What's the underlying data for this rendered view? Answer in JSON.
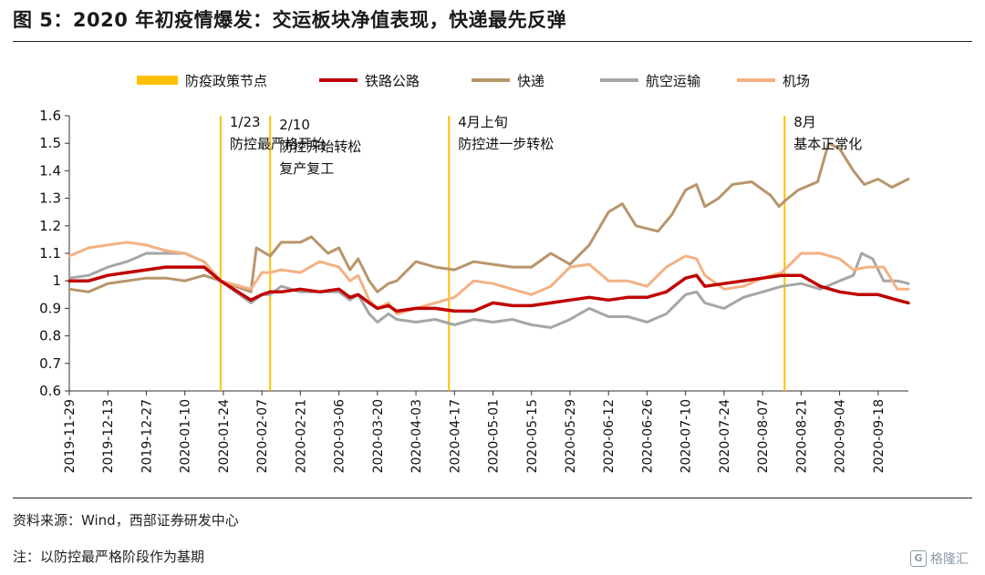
{
  "header": {
    "title": "图 5：2020 年初疫情爆发：交运板块净值表现，快递最先反弹"
  },
  "footer": {
    "source": "资料来源：Wind，西部证券研发中心",
    "note": "注：以防控最严格阶段作为基期",
    "watermark": "格隆汇",
    "watermark_badge": "G"
  },
  "chart_data": {
    "type": "line",
    "title": "",
    "xlabel": "",
    "ylabel": "",
    "ylim": [
      0.6,
      1.6
    ],
    "yticks": [
      "1.6",
      "1.5",
      "1.4",
      "1.3",
      "1.2",
      "1.1",
      "1",
      "0.9",
      "0.8",
      "0.7",
      "0.6"
    ],
    "x_tick_labels": [
      "2019-11-29",
      "2019-12-13",
      "2019-12-27",
      "2020-01-10",
      "2020-01-24",
      "2020-02-07",
      "2020-02-21",
      "2020-03-06",
      "2020-03-20",
      "2020-04-03",
      "2020-04-17",
      "2020-05-01",
      "2020-05-15",
      "2020-05-29",
      "2020-06-12",
      "2020-06-26",
      "2020-07-10",
      "2020-07-24",
      "2020-08-07",
      "2020-08-21",
      "2020-09-04",
      "2020-09-18"
    ],
    "x_range": [
      "2019-11-29",
      "2020-09-29"
    ],
    "grid": false,
    "legend_position": "top",
    "legend": [
      {
        "name": "防疫政策节点",
        "color": "#ffc000",
        "kind": "bar"
      },
      {
        "name": "铁路公路",
        "color": "#c00000",
        "kind": "line"
      },
      {
        "name": "快递",
        "color": "#b8956a",
        "kind": "line"
      },
      {
        "name": "航空运输",
        "color": "#a6a6a6",
        "kind": "line"
      },
      {
        "name": "机场",
        "color": "#f4b183",
        "kind": "line"
      }
    ],
    "policy_lines": [
      {
        "date": "2020-01-23",
        "label_lines": [
          "1/23",
          "防控最严格开始"
        ],
        "label_y": 1.56
      },
      {
        "date": "2020-02-10",
        "label_lines": [
          "2/10",
          "防控开始转松",
          "复产复工"
        ],
        "label_y": 1.55
      },
      {
        "date": "2020-04-15",
        "label_lines": [
          "4月上旬",
          "防控进一步转松"
        ],
        "label_y": 1.56
      },
      {
        "date": "2020-08-15",
        "label_lines": [
          "8月",
          "基本正常化"
        ],
        "label_y": 1.56
      }
    ],
    "series": [
      {
        "name": "快递",
        "color": "#b8956a",
        "width": 3,
        "points": [
          [
            "2019-11-29",
            0.97
          ],
          [
            "2019-12-06",
            0.96
          ],
          [
            "2019-12-13",
            0.99
          ],
          [
            "2019-12-20",
            1.0
          ],
          [
            "2019-12-27",
            1.01
          ],
          [
            "2020-01-03",
            1.01
          ],
          [
            "2020-01-10",
            1.0
          ],
          [
            "2020-01-17",
            1.02
          ],
          [
            "2020-01-23",
            1.0
          ],
          [
            "2020-02-03",
            0.96
          ],
          [
            "2020-02-05",
            1.12
          ],
          [
            "2020-02-10",
            1.09
          ],
          [
            "2020-02-14",
            1.14
          ],
          [
            "2020-02-21",
            1.14
          ],
          [
            "2020-02-25",
            1.16
          ],
          [
            "2020-03-02",
            1.1
          ],
          [
            "2020-03-06",
            1.12
          ],
          [
            "2020-03-10",
            1.04
          ],
          [
            "2020-03-13",
            1.08
          ],
          [
            "2020-03-17",
            1.0
          ],
          [
            "2020-03-20",
            0.96
          ],
          [
            "2020-03-24",
            0.99
          ],
          [
            "2020-03-27",
            1.0
          ],
          [
            "2020-04-03",
            1.07
          ],
          [
            "2020-04-10",
            1.05
          ],
          [
            "2020-04-17",
            1.04
          ],
          [
            "2020-04-24",
            1.07
          ],
          [
            "2020-05-01",
            1.06
          ],
          [
            "2020-05-08",
            1.05
          ],
          [
            "2020-05-15",
            1.05
          ],
          [
            "2020-05-22",
            1.1
          ],
          [
            "2020-05-29",
            1.06
          ],
          [
            "2020-06-05",
            1.13
          ],
          [
            "2020-06-12",
            1.25
          ],
          [
            "2020-06-17",
            1.28
          ],
          [
            "2020-06-22",
            1.2
          ],
          [
            "2020-06-30",
            1.18
          ],
          [
            "2020-07-05",
            1.24
          ],
          [
            "2020-07-10",
            1.33
          ],
          [
            "2020-07-14",
            1.35
          ],
          [
            "2020-07-17",
            1.27
          ],
          [
            "2020-07-22",
            1.3
          ],
          [
            "2020-07-27",
            1.35
          ],
          [
            "2020-08-03",
            1.36
          ],
          [
            "2020-08-10",
            1.31
          ],
          [
            "2020-08-13",
            1.27
          ],
          [
            "2020-08-15",
            1.29
          ],
          [
            "2020-08-20",
            1.33
          ],
          [
            "2020-08-27",
            1.36
          ],
          [
            "2020-08-31",
            1.5
          ],
          [
            "2020-09-04",
            1.48
          ],
          [
            "2020-09-09",
            1.4
          ],
          [
            "2020-09-13",
            1.35
          ],
          [
            "2020-09-18",
            1.37
          ],
          [
            "2020-09-23",
            1.34
          ],
          [
            "2020-09-29",
            1.37
          ]
        ]
      },
      {
        "name": "航空运输",
        "color": "#a6a6a6",
        "width": 3,
        "points": [
          [
            "2019-11-29",
            1.01
          ],
          [
            "2019-12-06",
            1.02
          ],
          [
            "2019-12-13",
            1.05
          ],
          [
            "2019-12-20",
            1.07
          ],
          [
            "2019-12-27",
            1.1
          ],
          [
            "2020-01-03",
            1.1
          ],
          [
            "2020-01-10",
            1.1
          ],
          [
            "2020-01-17",
            1.07
          ],
          [
            "2020-01-23",
            1.0
          ],
          [
            "2020-02-03",
            0.92
          ],
          [
            "2020-02-07",
            0.95
          ],
          [
            "2020-02-10",
            0.95
          ],
          [
            "2020-02-14",
            0.98
          ],
          [
            "2020-02-21",
            0.96
          ],
          [
            "2020-02-28",
            0.96
          ],
          [
            "2020-03-06",
            0.96
          ],
          [
            "2020-03-10",
            0.93
          ],
          [
            "2020-03-13",
            0.95
          ],
          [
            "2020-03-17",
            0.88
          ],
          [
            "2020-03-20",
            0.85
          ],
          [
            "2020-03-24",
            0.88
          ],
          [
            "2020-03-27",
            0.86
          ],
          [
            "2020-04-03",
            0.85
          ],
          [
            "2020-04-10",
            0.86
          ],
          [
            "2020-04-17",
            0.84
          ],
          [
            "2020-04-24",
            0.86
          ],
          [
            "2020-05-01",
            0.85
          ],
          [
            "2020-05-08",
            0.86
          ],
          [
            "2020-05-15",
            0.84
          ],
          [
            "2020-05-22",
            0.83
          ],
          [
            "2020-05-29",
            0.86
          ],
          [
            "2020-06-05",
            0.9
          ],
          [
            "2020-06-12",
            0.87
          ],
          [
            "2020-06-19",
            0.87
          ],
          [
            "2020-06-26",
            0.85
          ],
          [
            "2020-07-03",
            0.88
          ],
          [
            "2020-07-10",
            0.95
          ],
          [
            "2020-07-14",
            0.96
          ],
          [
            "2020-07-17",
            0.92
          ],
          [
            "2020-07-24",
            0.9
          ],
          [
            "2020-07-31",
            0.94
          ],
          [
            "2020-08-07",
            0.96
          ],
          [
            "2020-08-14",
            0.98
          ],
          [
            "2020-08-21",
            0.99
          ],
          [
            "2020-08-28",
            0.97
          ],
          [
            "2020-09-04",
            1.0
          ],
          [
            "2020-09-09",
            1.02
          ],
          [
            "2020-09-12",
            1.1
          ],
          [
            "2020-09-16",
            1.08
          ],
          [
            "2020-09-20",
            1.0
          ],
          [
            "2020-09-25",
            1.0
          ],
          [
            "2020-09-29",
            0.99
          ]
        ]
      },
      {
        "name": "机场",
        "color": "#f4b183",
        "width": 3,
        "points": [
          [
            "2019-11-29",
            1.09
          ],
          [
            "2019-12-06",
            1.12
          ],
          [
            "2019-12-13",
            1.13
          ],
          [
            "2019-12-20",
            1.14
          ],
          [
            "2019-12-27",
            1.13
          ],
          [
            "2020-01-03",
            1.11
          ],
          [
            "2020-01-10",
            1.1
          ],
          [
            "2020-01-17",
            1.07
          ],
          [
            "2020-01-23",
            1.0
          ],
          [
            "2020-02-03",
            0.97
          ],
          [
            "2020-02-07",
            1.03
          ],
          [
            "2020-02-10",
            1.03
          ],
          [
            "2020-02-14",
            1.04
          ],
          [
            "2020-02-21",
            1.03
          ],
          [
            "2020-02-28",
            1.07
          ],
          [
            "2020-03-06",
            1.05
          ],
          [
            "2020-03-10",
            1.0
          ],
          [
            "2020-03-13",
            1.02
          ],
          [
            "2020-03-17",
            0.93
          ],
          [
            "2020-03-20",
            0.9
          ],
          [
            "2020-03-24",
            0.92
          ],
          [
            "2020-03-27",
            0.88
          ],
          [
            "2020-04-03",
            0.9
          ],
          [
            "2020-04-10",
            0.92
          ],
          [
            "2020-04-17",
            0.94
          ],
          [
            "2020-04-24",
            1.0
          ],
          [
            "2020-05-01",
            0.99
          ],
          [
            "2020-05-08",
            0.97
          ],
          [
            "2020-05-15",
            0.95
          ],
          [
            "2020-05-22",
            0.98
          ],
          [
            "2020-05-29",
            1.05
          ],
          [
            "2020-06-05",
            1.06
          ],
          [
            "2020-06-12",
            1.0
          ],
          [
            "2020-06-19",
            1.0
          ],
          [
            "2020-06-26",
            0.98
          ],
          [
            "2020-07-03",
            1.05
          ],
          [
            "2020-07-10",
            1.09
          ],
          [
            "2020-07-14",
            1.08
          ],
          [
            "2020-07-17",
            1.02
          ],
          [
            "2020-07-24",
            0.97
          ],
          [
            "2020-07-31",
            0.98
          ],
          [
            "2020-08-07",
            1.01
          ],
          [
            "2020-08-14",
            1.03
          ],
          [
            "2020-08-21",
            1.1
          ],
          [
            "2020-08-28",
            1.1
          ],
          [
            "2020-09-04",
            1.08
          ],
          [
            "2020-09-09",
            1.04
          ],
          [
            "2020-09-14",
            1.05
          ],
          [
            "2020-09-20",
            1.05
          ],
          [
            "2020-09-25",
            0.97
          ],
          [
            "2020-09-29",
            0.97
          ]
        ]
      },
      {
        "name": "铁路公路",
        "color": "#c00000",
        "width": 3.5,
        "points": [
          [
            "2019-11-29",
            1.0
          ],
          [
            "2019-12-06",
            1.0
          ],
          [
            "2019-12-13",
            1.02
          ],
          [
            "2019-12-20",
            1.03
          ],
          [
            "2019-12-27",
            1.04
          ],
          [
            "2020-01-03",
            1.05
          ],
          [
            "2020-01-10",
            1.05
          ],
          [
            "2020-01-17",
            1.05
          ],
          [
            "2020-01-23",
            1.0
          ],
          [
            "2020-02-03",
            0.93
          ],
          [
            "2020-02-07",
            0.95
          ],
          [
            "2020-02-10",
            0.96
          ],
          [
            "2020-02-14",
            0.96
          ],
          [
            "2020-02-21",
            0.97
          ],
          [
            "2020-02-28",
            0.96
          ],
          [
            "2020-03-06",
            0.97
          ],
          [
            "2020-03-10",
            0.94
          ],
          [
            "2020-03-13",
            0.95
          ],
          [
            "2020-03-17",
            0.92
          ],
          [
            "2020-03-20",
            0.9
          ],
          [
            "2020-03-24",
            0.91
          ],
          [
            "2020-03-27",
            0.89
          ],
          [
            "2020-04-03",
            0.9
          ],
          [
            "2020-04-10",
            0.9
          ],
          [
            "2020-04-17",
            0.89
          ],
          [
            "2020-04-24",
            0.89
          ],
          [
            "2020-05-01",
            0.92
          ],
          [
            "2020-05-08",
            0.91
          ],
          [
            "2020-05-15",
            0.91
          ],
          [
            "2020-05-22",
            0.92
          ],
          [
            "2020-05-29",
            0.93
          ],
          [
            "2020-06-05",
            0.94
          ],
          [
            "2020-06-12",
            0.93
          ],
          [
            "2020-06-19",
            0.94
          ],
          [
            "2020-06-26",
            0.94
          ],
          [
            "2020-07-03",
            0.96
          ],
          [
            "2020-07-10",
            1.01
          ],
          [
            "2020-07-14",
            1.02
          ],
          [
            "2020-07-17",
            0.98
          ],
          [
            "2020-07-24",
            0.99
          ],
          [
            "2020-07-31",
            1.0
          ],
          [
            "2020-08-07",
            1.01
          ],
          [
            "2020-08-14",
            1.02
          ],
          [
            "2020-08-21",
            1.02
          ],
          [
            "2020-08-28",
            0.98
          ],
          [
            "2020-09-04",
            0.96
          ],
          [
            "2020-09-11",
            0.95
          ],
          [
            "2020-09-18",
            0.95
          ],
          [
            "2020-09-25",
            0.93
          ],
          [
            "2020-09-29",
            0.92
          ]
        ]
      }
    ]
  }
}
